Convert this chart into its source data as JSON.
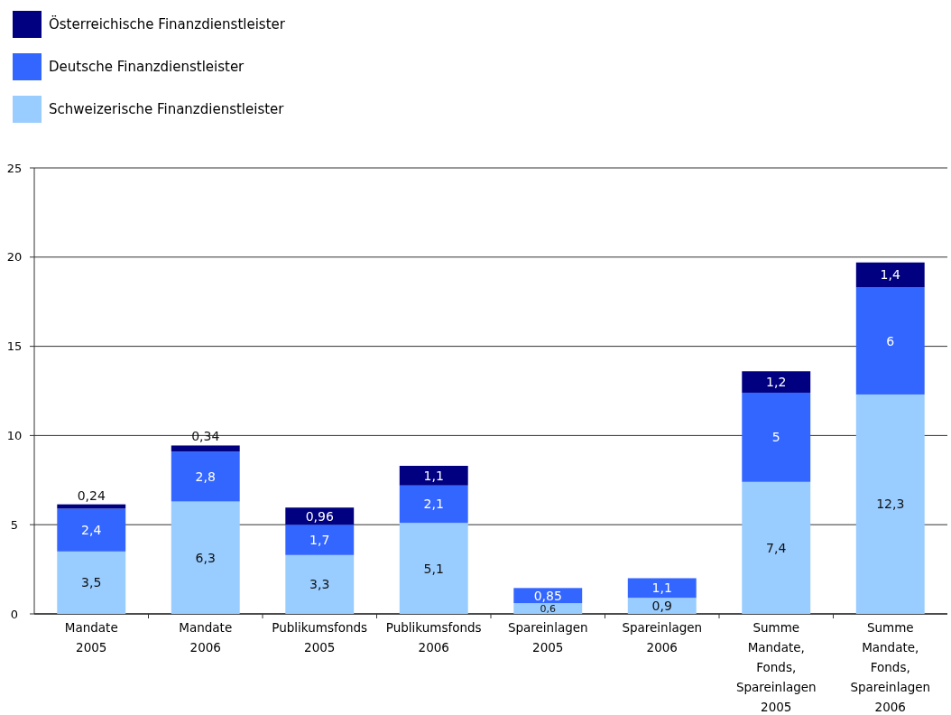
{
  "chart_data": {
    "type": "bar",
    "stacked": true,
    "categories": [
      "Mandate 2005",
      "Mandate 2006",
      "Publikumsfonds 2005",
      "Publikumsfonds 2006",
      "Spareinlagen 2005",
      "Spareinlagen 2006",
      "Summe Mandate, Fonds, Spareinlagen 2005",
      "Summe Mandate, Fonds, Spareinlagen 2006"
    ],
    "series": [
      {
        "name": "Schweizerische Finanzdienstleister",
        "color": "#99ccff",
        "values": [
          3.5,
          6.3,
          3.3,
          5.1,
          0.6,
          0.9,
          7.4,
          12.3
        ],
        "value_labels": [
          "3,5",
          "6,3",
          "3,3",
          "5,1",
          "0,6",
          "0,9",
          "7,4",
          "12,3"
        ]
      },
      {
        "name": "Deutsche Finanzdienstleister",
        "color": "#3366ff",
        "values": [
          2.4,
          2.8,
          1.7,
          2.1,
          0.85,
          1.1,
          5,
          6
        ],
        "value_labels": [
          "2,4",
          "2,8",
          "1,7",
          "2,1",
          "0,85",
          "1,1",
          "5",
          "6"
        ]
      },
      {
        "name": "Österreichische Finanzdienstleister",
        "color": "#000080",
        "values": [
          0.24,
          0.34,
          0.96,
          1.1,
          null,
          null,
          1.2,
          1.4
        ],
        "value_labels": [
          "0,24",
          "0,34",
          "0,96",
          "1,1",
          null,
          null,
          "1,2",
          "1,4"
        ]
      }
    ],
    "ylim": [
      0,
      25
    ],
    "yticks": [
      0,
      5,
      10,
      15,
      20,
      25
    ],
    "grid": "y",
    "legend": "top left"
  }
}
